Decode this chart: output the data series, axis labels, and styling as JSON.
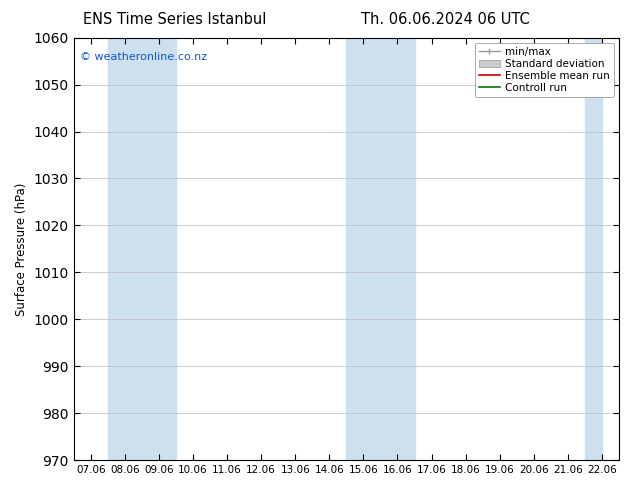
{
  "title_left": "ENS Time Series Istanbul",
  "title_right": "Th. 06.06.2024 06 UTC",
  "ylabel": "Surface Pressure (hPa)",
  "ylim": [
    970,
    1060
  ],
  "yticks": [
    970,
    980,
    990,
    1000,
    1010,
    1020,
    1030,
    1040,
    1050,
    1060
  ],
  "xlabels": [
    "07.06",
    "08.06",
    "09.06",
    "10.06",
    "11.06",
    "12.06",
    "13.06",
    "14.06",
    "15.06",
    "16.06",
    "17.06",
    "18.06",
    "19.06",
    "20.06",
    "21.06",
    "22.06"
  ],
  "shaded_bands": [
    {
      "xstart": 1,
      "xend": 3,
      "color": "#cce0f0"
    },
    {
      "xstart": 8,
      "xend": 10,
      "color": "#cce0f0"
    },
    {
      "xstart": 15,
      "xend": 15.5,
      "color": "#cce0f0"
    }
  ],
  "legend_labels": [
    "min/max",
    "Standard deviation",
    "Ensemble mean run",
    "Controll run"
  ],
  "legend_colors": [
    "#999999",
    "#bbbbbb",
    "#cc0000",
    "#007700"
  ],
  "copyright_text": "© weatheronline.co.nz",
  "bg_color": "#ffffff",
  "plot_bg_color": "#ffffff",
  "grid_color": "#bbbbbb",
  "title_fontsize": 10.5,
  "tick_fontsize": 7.5,
  "ylabel_fontsize": 8.5,
  "legend_fontsize": 7.5
}
